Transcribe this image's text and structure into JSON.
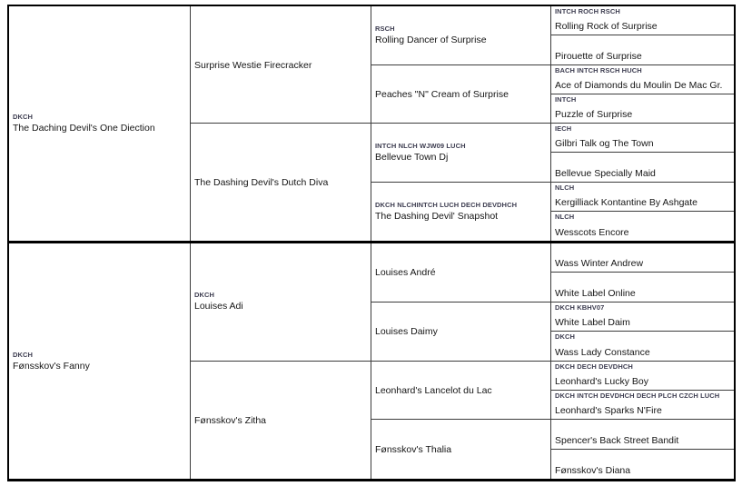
{
  "document_type": "Dog pedigree table",
  "colors": {
    "background": "#ffffff",
    "outer_border": "#000000",
    "inner_border": "#3c3c3c",
    "title_text": "#3d3d50",
    "name_text": "#151515"
  },
  "pedigree": {
    "gen1": [
      {
        "titles": "DKCH",
        "name": "The Daching Devil's One Diection"
      },
      {
        "titles": "DKCH",
        "name": "Fønsskov's Fanny"
      }
    ],
    "gen2": [
      {
        "titles": "",
        "name": "Surprise Westie Firecracker"
      },
      {
        "titles": "",
        "name": "The Dashing Devil's Dutch Diva"
      },
      {
        "titles": "DKCH",
        "name": "Louises Adi"
      },
      {
        "titles": "",
        "name": "Fønsskov's Zitha"
      }
    ],
    "gen3": [
      {
        "titles": "RSCH",
        "name": "Rolling Dancer of Surprise"
      },
      {
        "titles": "",
        "name": "Peaches \"N\" Cream of Surprise"
      },
      {
        "titles": "INTCH NLCH WJW09 LUCH",
        "name": "Bellevue Town Dj"
      },
      {
        "titles": "DKCH NLCHINTCH LUCH DECH DEVDHCH",
        "name": "The Dashing Devil' Snapshot"
      },
      {
        "titles": "",
        "name": "Louises André"
      },
      {
        "titles": "",
        "name": "Louises Daimy"
      },
      {
        "titles": "",
        "name": "Leonhard's Lancelot du Lac"
      },
      {
        "titles": "",
        "name": "Fønsskov's Thalia"
      }
    ],
    "gen4": [
      {
        "titles": "INTCH ROCH RSCH",
        "name": "Rolling Rock of Surprise"
      },
      {
        "titles": "",
        "name": "Pirouette of Surprise"
      },
      {
        "titles": "BACH INTCH RSCH HUCH",
        "name": "Ace of Diamonds du Moulin De Mac Gr."
      },
      {
        "titles": "INTCH",
        "name": "Puzzle of Surprise"
      },
      {
        "titles": "IECH",
        "name": "Gilbri Talk og The Town"
      },
      {
        "titles": "",
        "name": "Bellevue Specially Maid"
      },
      {
        "titles": "NLCH",
        "name": "Kergilliack Kontantine By Ashgate"
      },
      {
        "titles": "NLCH",
        "name": "Wesscots Encore"
      },
      {
        "titles": "",
        "name": "Wass Winter Andrew"
      },
      {
        "titles": "",
        "name": "White Label Online"
      },
      {
        "titles": "DKCH KBHV07",
        "name": "White Label Daim"
      },
      {
        "titles": "DKCH",
        "name": "Wass Lady Constance"
      },
      {
        "titles": "DKCH DECH DEVDHCH",
        "name": "Leonhard's Lucky Boy"
      },
      {
        "titles": "DKCH INTCH DEVDHCH DECH PLCH CZCH LUCH",
        "name": "Leonhard's Sparks N'Fire"
      },
      {
        "titles": "",
        "name": "Spencer's Back Street Bandit"
      },
      {
        "titles": "",
        "name": "Fønsskov's Diana"
      }
    ]
  }
}
